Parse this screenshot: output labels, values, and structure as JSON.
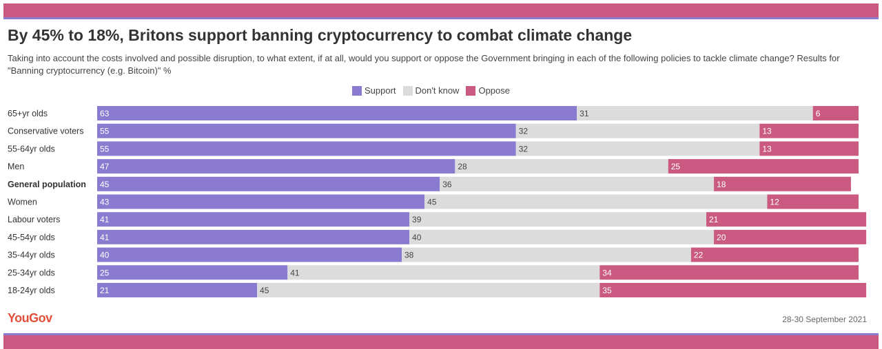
{
  "header": {
    "title": "By 45% to 18%, Britons support banning cryptocurrency to combat climate change",
    "subtitle": "Taking into account the costs involved and possible disruption, to what extent, if at all, would you support or oppose the Government bringing in each of the following policies to tackle climate change? Results for \"Banning cryptocurrency (e.g. Bitcoin)\" %"
  },
  "footer": {
    "logo": "YouGov",
    "date": "28-30 September 2021"
  },
  "colors": {
    "support": "#8b7bd0",
    "dont_know": "#dcdcdc",
    "oppose": "#cb5a82",
    "brand": "#e44f3b"
  },
  "chart_data": {
    "type": "bar",
    "orientation": "horizontal",
    "stacked": true,
    "title": "By 45% to 18%, Britons support banning cryptocurrency to combat climate change",
    "legend_position": "top-center",
    "categories": [
      "65+yr olds",
      "Conservative voters",
      "55-64yr olds",
      "Men",
      "General population",
      "Women",
      "Labour voters",
      "45-54yr olds",
      "35-44yr olds",
      "25-34yr olds",
      "18-24yr olds"
    ],
    "highlight_category": "General population",
    "series": [
      {
        "name": "Support",
        "values": [
          63,
          55,
          55,
          47,
          45,
          43,
          41,
          41,
          40,
          25,
          21
        ]
      },
      {
        "name": "Don't know",
        "values": [
          31,
          32,
          32,
          28,
          36,
          45,
          39,
          40,
          38,
          41,
          45
        ]
      },
      {
        "name": "Oppose",
        "values": [
          6,
          13,
          13,
          25,
          18,
          12,
          21,
          20,
          22,
          34,
          35
        ]
      }
    ]
  }
}
